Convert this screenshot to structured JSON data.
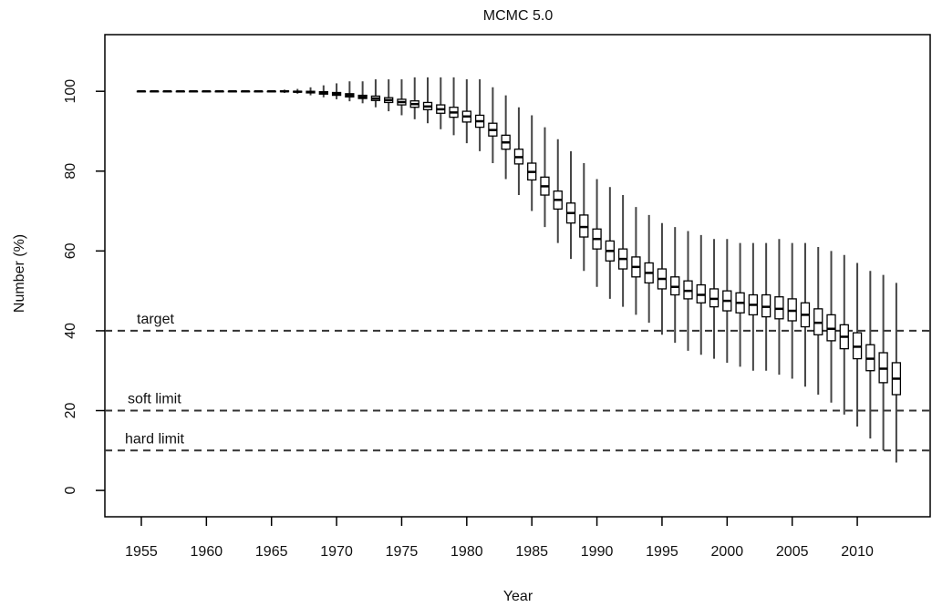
{
  "chart_data": {
    "type": "boxplot",
    "title": "MCMC 5.0",
    "x_label": "Year",
    "y_label": "Number (%)",
    "x": [
      1955,
      1956,
      1957,
      1958,
      1959,
      1960,
      1961,
      1962,
      1963,
      1964,
      1965,
      1966,
      1967,
      1968,
      1969,
      1970,
      1971,
      1972,
      1973,
      1974,
      1975,
      1976,
      1977,
      1978,
      1979,
      1980,
      1981,
      1982,
      1983,
      1984,
      1985,
      1986,
      1987,
      1988,
      1989,
      1990,
      1991,
      1992,
      1993,
      1994,
      1995,
      1996,
      1997,
      1998,
      1999,
      2000,
      2001,
      2002,
      2003,
      2004,
      2005,
      2006,
      2007,
      2008,
      2009,
      2010,
      2011,
      2012,
      2013
    ],
    "whisker_low": [
      100,
      100,
      100,
      100,
      100,
      100,
      100,
      100,
      100,
      100,
      99.8,
      99.6,
      99.4,
      99,
      98.5,
      98,
      97.5,
      97,
      96,
      95,
      94,
      93,
      92,
      90.5,
      89,
      87,
      85,
      82,
      78,
      74,
      70,
      66,
      62,
      58,
      55,
      51,
      48,
      46,
      44,
      42,
      39,
      37,
      35,
      34,
      33,
      32,
      31,
      30,
      30,
      29,
      28,
      26,
      24,
      22,
      19,
      16,
      13,
      10,
      7
    ],
    "q1": [
      100,
      100,
      100,
      100,
      100,
      100,
      100,
      100,
      100,
      100,
      100,
      99.9,
      99.8,
      99.6,
      99.3,
      99,
      98.6,
      98.2,
      97.7,
      97.2,
      96.6,
      96,
      95.4,
      94.5,
      93.5,
      92.3,
      91,
      88.8,
      85.5,
      81.8,
      77.8,
      74,
      70.5,
      67,
      63.5,
      60.5,
      57.5,
      55.5,
      53.5,
      52,
      50.5,
      49,
      48,
      47,
      46,
      45,
      44.5,
      44,
      43.5,
      43,
      42.5,
      41,
      39,
      37.5,
      35.5,
      33,
      30,
      27,
      24
    ],
    "median": [
      100,
      100,
      100,
      100,
      100,
      100,
      100,
      100,
      100,
      100,
      100,
      100,
      99.9,
      99.8,
      99.6,
      99.3,
      99,
      98.6,
      98.2,
      97.8,
      97.3,
      96.8,
      96.2,
      95.5,
      94.7,
      93.7,
      92.5,
      90.3,
      87.2,
      83.5,
      79.8,
      76.2,
      72.8,
      69.5,
      66,
      63,
      60,
      58,
      56,
      54.5,
      53,
      51,
      50,
      49,
      48,
      47.5,
      47,
      46.5,
      46,
      45.5,
      45,
      44,
      42,
      40.5,
      38.5,
      36,
      33,
      30.5,
      28
    ],
    "q3": [
      100,
      100,
      100,
      100,
      100,
      100,
      100,
      100,
      100,
      100,
      100,
      100.1,
      100,
      100,
      99.9,
      99.7,
      99.4,
      99,
      98.8,
      98.4,
      98,
      97.6,
      97.2,
      96.6,
      96,
      95,
      94,
      92,
      89,
      85.5,
      82,
      78.5,
      75,
      72,
      69,
      65.5,
      62.5,
      60.5,
      58.5,
      57,
      55.5,
      53.5,
      52.5,
      51.5,
      50.5,
      50,
      49.5,
      49,
      49,
      48.5,
      48,
      47,
      45.5,
      44,
      41.5,
      39.5,
      36.5,
      34.5,
      32
    ],
    "whisker_high": [
      100,
      100,
      100,
      100,
      100,
      100,
      100,
      100,
      100,
      100,
      100.2,
      100.4,
      100.6,
      101,
      101.5,
      102,
      102.5,
      102.5,
      103,
      103,
      103,
      103.5,
      103.5,
      103.5,
      103.5,
      103,
      103,
      101,
      99,
      96,
      94,
      91,
      88,
      85,
      82,
      78,
      76,
      74,
      71,
      69,
      67,
      66,
      65,
      64,
      63,
      63,
      62,
      62,
      62,
      63,
      62,
      62,
      61,
      60,
      59,
      57,
      55,
      54,
      52
    ],
    "reference_lines": [
      {
        "value": 40,
        "label": "target"
      },
      {
        "value": 20,
        "label": "soft limit"
      },
      {
        "value": 10,
        "label": "hard limit"
      }
    ],
    "xlim": [
      1952.2,
      2015.6
    ],
    "ylim": [
      -6.6,
      114.2
    ],
    "xticks": [
      1955,
      1960,
      1965,
      1970,
      1975,
      1980,
      1985,
      1990,
      1995,
      2000,
      2005,
      2010
    ],
    "yticks": [
      0,
      20,
      40,
      60,
      80,
      100
    ]
  }
}
